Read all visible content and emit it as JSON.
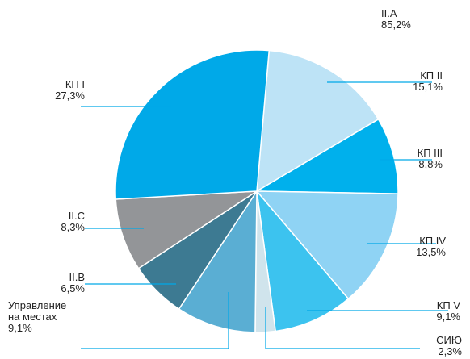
{
  "chart_data": {
    "type": "pie",
    "categories": [
      "КП II",
      "КП III",
      "КП IV",
      "КП V",
      "СИЮ",
      "Управление на местах",
      "II.B",
      "II.C",
      "КП I"
    ],
    "values": [
      15.1,
      8.8,
      13.5,
      9.1,
      2.3,
      9.1,
      6.5,
      8.3,
      27.3
    ],
    "value_labels": [
      "15,1%",
      "8,8%",
      "13,5%",
      "9,1%",
      "2,3%",
      "9,1%",
      "6,5%",
      "8,3%",
      "27,3%"
    ],
    "colors": [
      "#bde3f6",
      "#00b0ec",
      "#8fd3f4",
      "#3cc3ef",
      "#d0e4ec",
      "#5aaed3",
      "#3d7a92",
      "#939598",
      "#00a9e8"
    ],
    "group": {
      "label": "II.A",
      "value": 85.2,
      "value_label": "85,2%"
    }
  }
}
